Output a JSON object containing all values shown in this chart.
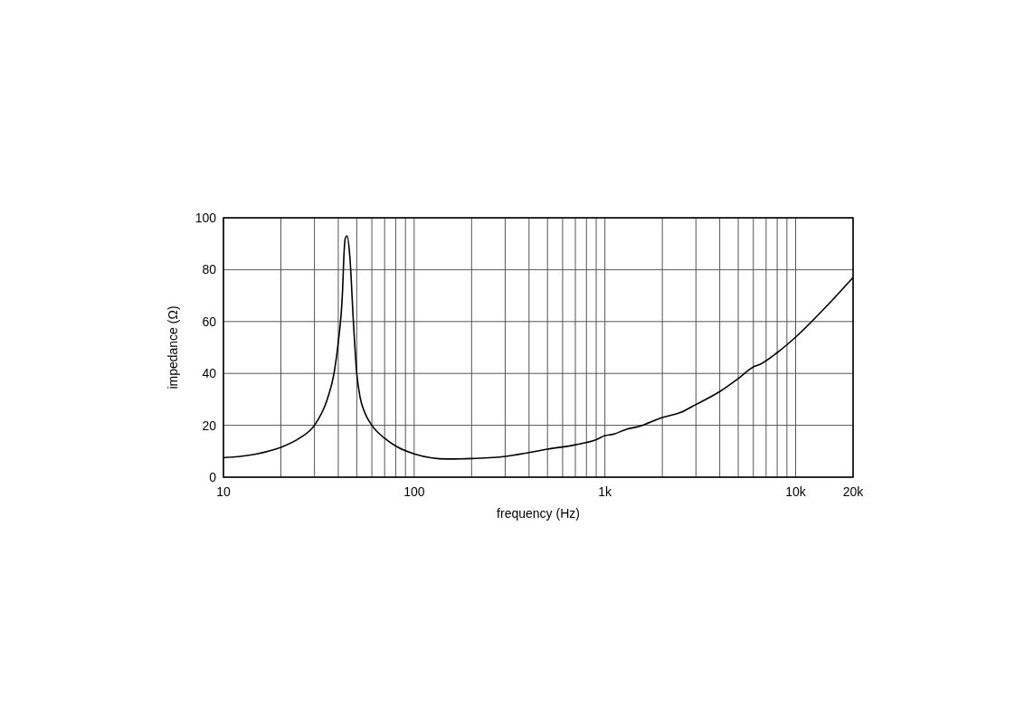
{
  "chart_data": {
    "type": "line",
    "xlabel": "frequency (Hz)",
    "ylabel": "impedance (Ω)",
    "log": "x",
    "grid": true,
    "xlim": [
      10,
      20000
    ],
    "ylim": [
      0,
      100
    ],
    "xticks": [
      10,
      {
        "value": 20,
        "label": null
      },
      {
        "value": 30,
        "label": null
      },
      {
        "value": 40,
        "label": null
      },
      {
        "value": 50,
        "label": null
      },
      {
        "value": 60,
        "label": null
      },
      {
        "value": 70,
        "label": null
      },
      {
        "value": 80,
        "label": null
      },
      {
        "value": 90,
        "label": null
      },
      100,
      {
        "value": 200,
        "label": null
      },
      {
        "value": 300,
        "label": null
      },
      {
        "value": 400,
        "label": null
      },
      {
        "value": 500,
        "label": null
      },
      {
        "value": 600,
        "label": null
      },
      {
        "value": 700,
        "label": null
      },
      {
        "value": 800,
        "label": null
      },
      {
        "value": 900,
        "label": null
      },
      {
        "value": 1000,
        "label": "1k"
      },
      {
        "value": 2000,
        "label": null
      },
      {
        "value": 3000,
        "label": null
      },
      {
        "value": 4000,
        "label": null
      },
      {
        "value": 5000,
        "label": null
      },
      {
        "value": 6000,
        "label": null
      },
      {
        "value": 7000,
        "label": null
      },
      {
        "value": 8000,
        "label": null
      },
      {
        "value": 9000,
        "label": null
      },
      {
        "value": 10000,
        "label": "10k"
      },
      {
        "value": 20000,
        "label": "20k"
      }
    ],
    "yticks": [
      0,
      20,
      40,
      60,
      80,
      100
    ],
    "series": [
      {
        "color": "#000000",
        "x": [
          10,
          15,
          20,
          25,
          30,
          35,
          38,
          40,
          42,
          43,
          43.5,
          44.5,
          46,
          48,
          50,
          52,
          55,
          60,
          70,
          80,
          100,
          150,
          200,
          300,
          400,
          500,
          700,
          900,
          1000,
          1100,
          1300,
          1500,
          2000,
          2500,
          3000,
          4000,
          5000,
          6000,
          6500,
          8000,
          10000,
          15000,
          20000
        ],
        "values": [
          7.5,
          9,
          11.5,
          15,
          20,
          30,
          40,
          52,
          70,
          88,
          92,
          93,
          85,
          60,
          40,
          31,
          25,
          20,
          15,
          12,
          9,
          7,
          7.2,
          8,
          9.5,
          10.8,
          12.5,
          14.5,
          16,
          16.5,
          18.5,
          19.5,
          23,
          25,
          28,
          33,
          38,
          42.5,
          43.5,
          48,
          54,
          67,
          77
        ]
      }
    ]
  }
}
